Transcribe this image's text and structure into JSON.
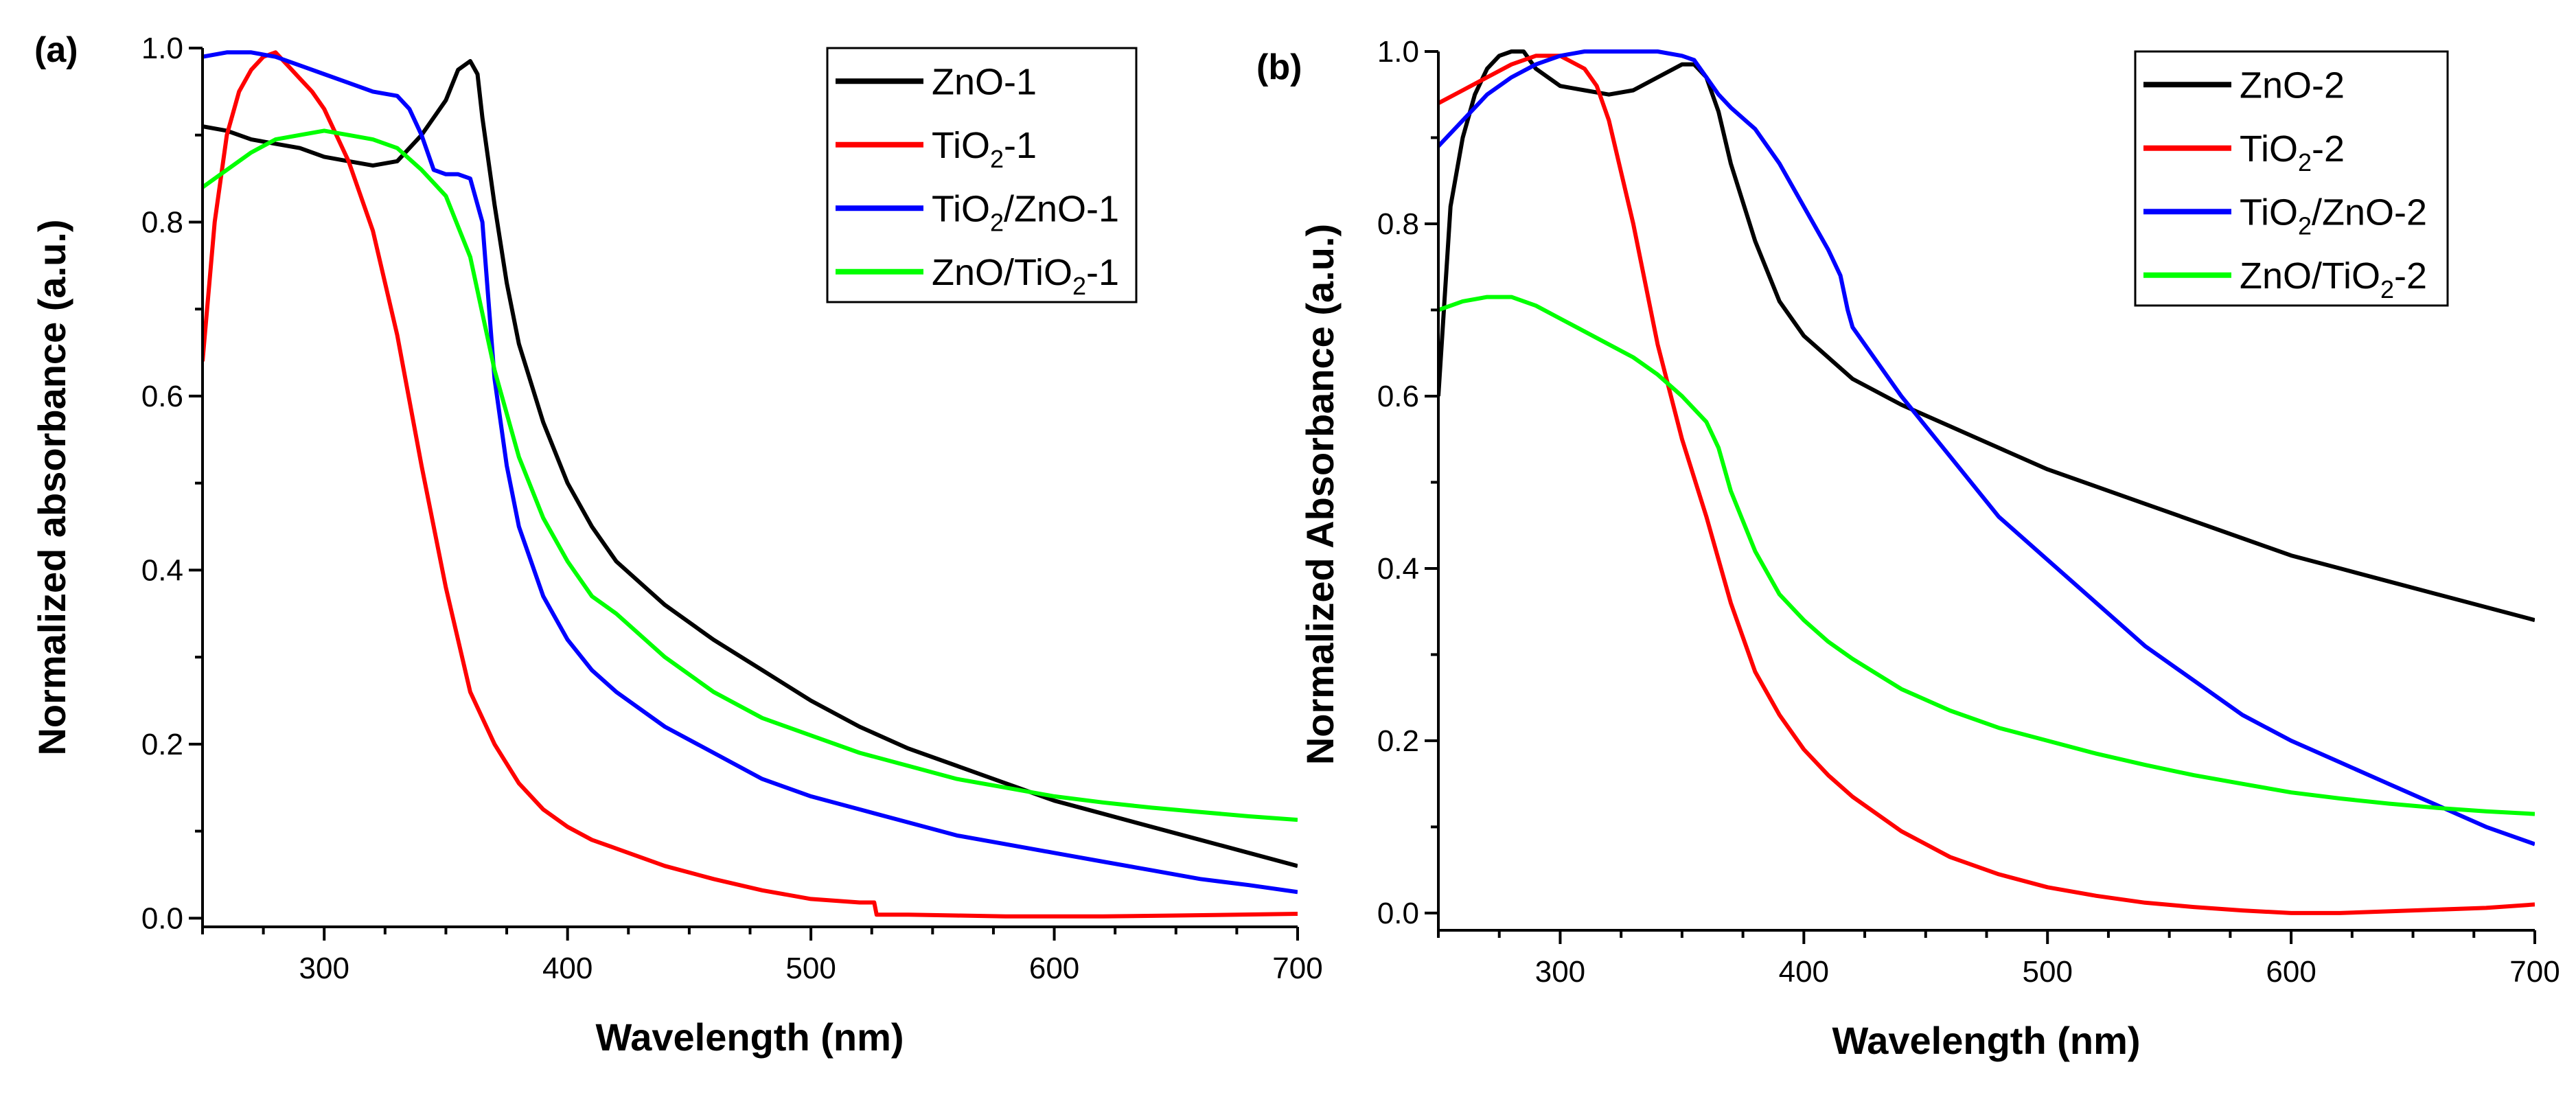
{
  "chart_data": [
    {
      "panel_label": "(a)",
      "type": "line",
      "xlabel": "Wavelength (nm)",
      "ylabel": "Normalized absorbance (a.u.)",
      "xlim": [
        250,
        700
      ],
      "ylim": [
        -0.01,
        1.0
      ],
      "xticks": [
        "300",
        "400",
        "500",
        "600",
        "700"
      ],
      "yticks": [
        "0.0",
        "0.2",
        "0.4",
        "0.6",
        "0.8",
        "1.0"
      ],
      "legend_position": "top-right",
      "series": [
        {
          "name": "ZnO-1",
          "legend": {
            "base": "ZnO-1"
          },
          "color": "#000000",
          "x": [
            250,
            260,
            270,
            280,
            290,
            300,
            310,
            320,
            330,
            340,
            350,
            355,
            360,
            363,
            365,
            370,
            375,
            380,
            390,
            400,
            410,
            420,
            440,
            460,
            480,
            500,
            520,
            540,
            560,
            580,
            600,
            620,
            640,
            660,
            680,
            700
          ],
          "y": [
            0.91,
            0.905,
            0.895,
            0.89,
            0.885,
            0.875,
            0.87,
            0.865,
            0.87,
            0.9,
            0.94,
            0.975,
            0.985,
            0.97,
            0.92,
            0.82,
            0.73,
            0.66,
            0.57,
            0.5,
            0.45,
            0.41,
            0.36,
            0.32,
            0.285,
            0.25,
            0.22,
            0.195,
            0.175,
            0.155,
            0.135,
            0.12,
            0.105,
            0.09,
            0.075,
            0.06
          ]
        },
        {
          "name": "TiO2-1",
          "legend": {
            "base": "TiO",
            "sub": "2",
            "tail": "-1"
          },
          "color": "#ff0000",
          "x": [
            250,
            255,
            260,
            265,
            270,
            275,
            280,
            285,
            290,
            295,
            300,
            310,
            320,
            330,
            340,
            350,
            360,
            370,
            380,
            390,
            400,
            410,
            420,
            440,
            460,
            480,
            500,
            520,
            526,
            527,
            540,
            560,
            580,
            600,
            620,
            650,
            700
          ],
          "y": [
            0.64,
            0.8,
            0.9,
            0.95,
            0.975,
            0.99,
            0.995,
            0.98,
            0.965,
            0.95,
            0.93,
            0.87,
            0.79,
            0.67,
            0.52,
            0.38,
            0.26,
            0.2,
            0.155,
            0.125,
            0.105,
            0.09,
            0.08,
            0.06,
            0.045,
            0.032,
            0.022,
            0.018,
            0.018,
            0.004,
            0.004,
            0.003,
            0.002,
            0.002,
            0.002,
            0.003,
            0.005
          ]
        },
        {
          "name": "TiO2/ZnO-1",
          "legend": {
            "base": "TiO",
            "sub": "2",
            "tail": "/ZnO-1"
          },
          "color": "#0000ff",
          "x": [
            250,
            260,
            270,
            280,
            290,
            300,
            310,
            320,
            330,
            335,
            340,
            345,
            350,
            355,
            360,
            365,
            370,
            375,
            380,
            390,
            400,
            410,
            420,
            440,
            460,
            480,
            500,
            520,
            540,
            560,
            580,
            600,
            620,
            640,
            660,
            680,
            700
          ],
          "y": [
            0.99,
            0.995,
            0.995,
            0.99,
            0.98,
            0.97,
            0.96,
            0.95,
            0.945,
            0.93,
            0.9,
            0.86,
            0.855,
            0.855,
            0.85,
            0.8,
            0.62,
            0.52,
            0.45,
            0.37,
            0.32,
            0.285,
            0.26,
            0.22,
            0.19,
            0.16,
            0.14,
            0.125,
            0.11,
            0.095,
            0.085,
            0.075,
            0.065,
            0.055,
            0.045,
            0.038,
            0.03
          ]
        },
        {
          "name": "ZnO/TiO2-1",
          "legend": {
            "base": "ZnO/TiO",
            "sub": "2",
            "tail": "-1"
          },
          "color": "#00ff00",
          "x": [
            250,
            260,
            270,
            280,
            290,
            300,
            310,
            320,
            330,
            340,
            350,
            360,
            370,
            380,
            390,
            400,
            410,
            420,
            440,
            460,
            480,
            500,
            520,
            540,
            560,
            580,
            600,
            620,
            640,
            660,
            680,
            700
          ],
          "y": [
            0.84,
            0.86,
            0.88,
            0.895,
            0.9,
            0.905,
            0.9,
            0.895,
            0.885,
            0.86,
            0.83,
            0.76,
            0.63,
            0.53,
            0.46,
            0.41,
            0.37,
            0.35,
            0.3,
            0.26,
            0.23,
            0.21,
            0.19,
            0.175,
            0.16,
            0.15,
            0.14,
            0.133,
            0.127,
            0.122,
            0.117,
            0.113
          ]
        }
      ]
    },
    {
      "panel_label": "(b)",
      "type": "line",
      "xlabel": "Wavelength (nm)",
      "ylabel": "Normalized Absorbance (a.u.)",
      "xlim": [
        250,
        700
      ],
      "ylim": [
        -0.02,
        1.0
      ],
      "xticks": [
        "300",
        "400",
        "500",
        "600",
        "700"
      ],
      "yticks": [
        "0.0",
        "0.2",
        "0.4",
        "0.6",
        "0.8",
        "1.0"
      ],
      "legend_position": "top-right",
      "series": [
        {
          "name": "ZnO-2",
          "legend": {
            "base": "ZnO-2"
          },
          "color": "#000000",
          "x": [
            250,
            255,
            260,
            265,
            270,
            275,
            280,
            285,
            290,
            300,
            310,
            320,
            330,
            340,
            350,
            355,
            360,
            365,
            370,
            380,
            390,
            400,
            410,
            420,
            440,
            460,
            480,
            500,
            520,
            540,
            560,
            580,
            600,
            620,
            640,
            660,
            680,
            700
          ],
          "y": [
            0.6,
            0.82,
            0.9,
            0.95,
            0.98,
            0.995,
            1.0,
            1.0,
            0.98,
            0.96,
            0.955,
            0.95,
            0.955,
            0.97,
            0.985,
            0.985,
            0.97,
            0.93,
            0.87,
            0.78,
            0.71,
            0.67,
            0.645,
            0.62,
            0.59,
            0.565,
            0.54,
            0.515,
            0.495,
            0.475,
            0.455,
            0.435,
            0.415,
            0.4,
            0.385,
            0.37,
            0.355,
            0.34
          ]
        },
        {
          "name": "TiO2-2",
          "legend": {
            "base": "TiO",
            "sub": "2",
            "tail": "-2"
          },
          "color": "#ff0000",
          "x": [
            250,
            260,
            270,
            280,
            290,
            300,
            310,
            315,
            320,
            330,
            340,
            350,
            360,
            370,
            380,
            390,
            400,
            410,
            420,
            440,
            460,
            480,
            500,
            520,
            540,
            560,
            580,
            600,
            620,
            640,
            660,
            680,
            700
          ],
          "y": [
            0.94,
            0.955,
            0.97,
            0.985,
            0.995,
            0.995,
            0.98,
            0.96,
            0.92,
            0.8,
            0.66,
            0.55,
            0.46,
            0.36,
            0.28,
            0.23,
            0.19,
            0.16,
            0.135,
            0.095,
            0.065,
            0.045,
            0.03,
            0.02,
            0.012,
            0.007,
            0.003,
            0.0,
            0.0,
            0.002,
            0.004,
            0.006,
            0.01
          ]
        },
        {
          "name": "TiO2/ZnO-2",
          "legend": {
            "base": "TiO",
            "sub": "2",
            "tail": "/ZnO-2"
          },
          "color": "#0000ff",
          "x": [
            250,
            260,
            270,
            280,
            290,
            300,
            310,
            320,
            330,
            340,
            350,
            355,
            360,
            365,
            370,
            380,
            390,
            400,
            410,
            415,
            418,
            420,
            430,
            440,
            460,
            480,
            500,
            520,
            540,
            560,
            580,
            600,
            620,
            640,
            660,
            680,
            700
          ],
          "y": [
            0.89,
            0.92,
            0.95,
            0.97,
            0.985,
            0.995,
            1.0,
            1.0,
            1.0,
            1.0,
            0.995,
            0.99,
            0.97,
            0.95,
            0.935,
            0.91,
            0.87,
            0.82,
            0.77,
            0.74,
            0.7,
            0.68,
            0.64,
            0.6,
            0.53,
            0.46,
            0.41,
            0.36,
            0.31,
            0.27,
            0.23,
            0.2,
            0.175,
            0.15,
            0.125,
            0.1,
            0.08
          ]
        },
        {
          "name": "ZnO/TiO2-2",
          "legend": {
            "base": "ZnO/TiO",
            "sub": "2",
            "tail": "-2"
          },
          "color": "#00ff00",
          "x": [
            250,
            260,
            270,
            280,
            290,
            300,
            310,
            320,
            330,
            340,
            350,
            360,
            365,
            370,
            380,
            390,
            400,
            410,
            420,
            440,
            460,
            480,
            500,
            520,
            540,
            560,
            580,
            600,
            620,
            640,
            660,
            680,
            700
          ],
          "y": [
            0.7,
            0.71,
            0.715,
            0.715,
            0.705,
            0.69,
            0.675,
            0.66,
            0.645,
            0.625,
            0.6,
            0.57,
            0.54,
            0.49,
            0.42,
            0.37,
            0.34,
            0.315,
            0.295,
            0.26,
            0.235,
            0.215,
            0.2,
            0.185,
            0.172,
            0.16,
            0.15,
            0.14,
            0.133,
            0.127,
            0.122,
            0.118,
            0.115
          ]
        }
      ]
    }
  ]
}
